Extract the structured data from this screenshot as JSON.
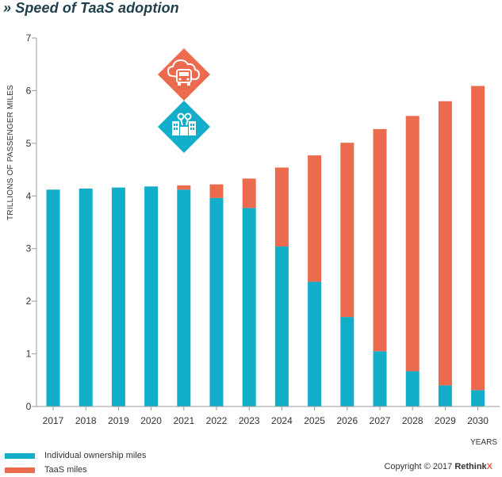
{
  "title": "» Speed of TaaS adoption",
  "colors": {
    "individual": "#12aec9",
    "taas": "#ec6b4f",
    "axis": "#9a9a9a",
    "icon_orange": "#ec6b4f",
    "icon_teal": "#12aec9"
  },
  "icons": [
    "car-cloud-icon",
    "city-keys-icon"
  ],
  "legend": [
    {
      "label": "Individual ownership miles",
      "color": "#12aec9"
    },
    {
      "label": "TaaS miles",
      "color": "#ec6b4f"
    }
  ],
  "copyright": {
    "text": "Copyright © 2017 ",
    "brand": "Rethink",
    "brand_x": "X"
  },
  "chart_data": {
    "type": "bar",
    "stacked": true,
    "title": "Speed of TaaS adoption",
    "xlabel": "YEARS",
    "ylabel": "TRILLIONS OF PASSENGER MILES",
    "ylim": [
      0,
      7
    ],
    "yticks": [
      0,
      1,
      2,
      3,
      4,
      5,
      6,
      7
    ],
    "categories": [
      "2017",
      "2018",
      "2019",
      "2020",
      "2021",
      "2022",
      "2023",
      "2024",
      "2025",
      "2026",
      "2027",
      "2028",
      "2029",
      "2030"
    ],
    "series": [
      {
        "name": "Individual ownership miles",
        "values": [
          4.12,
          4.14,
          4.16,
          4.18,
          4.12,
          3.96,
          3.77,
          3.04,
          2.37,
          1.7,
          1.05,
          0.67,
          0.4,
          0.31
        ]
      },
      {
        "name": "TaaS miles",
        "values": [
          0,
          0,
          0,
          0,
          0.08,
          0.26,
          0.56,
          1.5,
          2.4,
          3.31,
          4.22,
          4.85,
          5.4,
          5.78
        ]
      }
    ]
  }
}
